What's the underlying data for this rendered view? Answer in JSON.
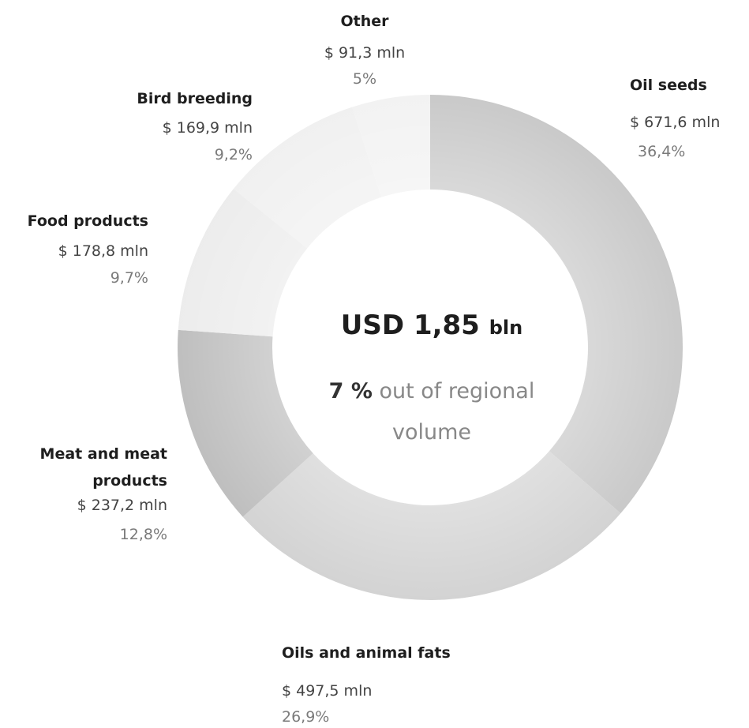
{
  "chart_data": {
    "type": "pie",
    "categories": [
      "Oil seeds",
      "Oils and animal fats",
      "Meat and meat products",
      "Food products",
      "Bird breeding",
      "Other"
    ],
    "values": [
      36.4,
      26.9,
      12.8,
      9.7,
      9.2,
      5
    ],
    "value_labels": [
      "36,4%",
      "26,9%",
      "12,8%",
      "9,7%",
      "9,2%",
      "5%"
    ],
    "amounts": [
      671.6,
      497.5,
      237.2,
      178.8,
      169.9,
      91.3
    ],
    "amount_labels": [
      "$ 671,6 mln",
      "$ 497,5 mln",
      "$ 237,2 mln",
      "$ 178,8 mln",
      "$ 169,9 mln",
      "$ 91,3 mln"
    ],
    "colors": [
      "#c8c8c8",
      "#d2d2d2",
      "#bdbdbd",
      "#ececec",
      "#f0f0f0",
      "#f2f2f2"
    ],
    "center_value": "USD 1,85",
    "center_unit": "bln",
    "center_share": "7 %",
    "center_note": "out of regional volume"
  }
}
